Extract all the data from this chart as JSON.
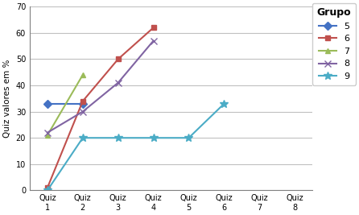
{
  "groups": {
    "5": {
      "x": [
        1,
        2
      ],
      "y": [
        33,
        33
      ],
      "color": "#4472c4",
      "marker": "D",
      "markersize": 5,
      "label": "5"
    },
    "6": {
      "x": [
        1,
        2,
        3,
        4
      ],
      "y": [
        1,
        34,
        50,
        62
      ],
      "color": "#c0504d",
      "marker": "s",
      "markersize": 5,
      "label": "6"
    },
    "7": {
      "x": [
        1,
        2
      ],
      "y": [
        21,
        44
      ],
      "color": "#9bbb59",
      "marker": "^",
      "markersize": 5,
      "label": "7"
    },
    "8": {
      "x": [
        1,
        2,
        3,
        4
      ],
      "y": [
        22,
        30,
        41,
        57
      ],
      "color": "#8064a2",
      "marker": "x",
      "markersize": 6,
      "label": "8"
    },
    "9": {
      "x": [
        1,
        2,
        3,
        4,
        5,
        6
      ],
      "y": [
        0,
        20,
        20,
        20,
        20,
        33
      ],
      "color": "#4bacc6",
      "marker": "*",
      "markersize": 7,
      "label": "9"
    }
  },
  "xlabel_ticks": [
    1,
    2,
    3,
    4,
    5,
    6,
    7,
    8
  ],
  "xlabel_labels": [
    "Quiz\n1",
    "Quiz\n2",
    "Quiz\n3",
    "Quiz\n4",
    "Quiz\n5",
    "Quiz\n6",
    "Quiz\n7",
    "Quiz\n8"
  ],
  "ylabel": "Quiz valores em %",
  "legend_title": "Grupo",
  "ylim": [
    0,
    70
  ],
  "xlim": [
    0.5,
    8.5
  ],
  "yticks": [
    0,
    10,
    20,
    30,
    40,
    50,
    60,
    70
  ],
  "background_color": "#ffffff",
  "grid_color": "#c0c0c0",
  "linewidth": 1.5
}
